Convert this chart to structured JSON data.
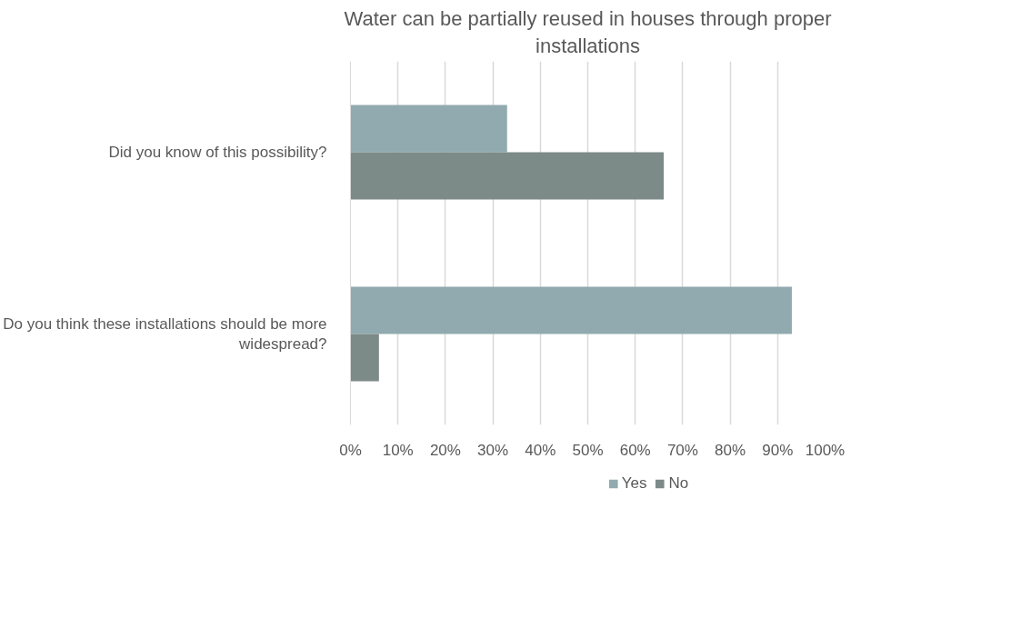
{
  "chart_data": {
    "type": "bar",
    "orientation": "horizontal",
    "title": "Water can be partially reused in houses through proper installations",
    "categories": [
      "Did you know of this possibility?",
      "Do you think these installations should be more widespread?"
    ],
    "series": [
      {
        "name": "Yes",
        "color": "#91aab0",
        "values": [
          33,
          93
        ]
      },
      {
        "name": "No",
        "color": "#7c8a88",
        "values": [
          66,
          6
        ]
      }
    ],
    "xlim": [
      0,
      100
    ],
    "xticks": [
      {
        "value": 0,
        "label": "0%"
      },
      {
        "value": 10,
        "label": "10%"
      },
      {
        "value": 20,
        "label": "20%"
      },
      {
        "value": 30,
        "label": "30%"
      },
      {
        "value": 40,
        "label": "40%"
      },
      {
        "value": 50,
        "label": "50%"
      },
      {
        "value": 60,
        "label": "60%"
      },
      {
        "value": 70,
        "label": "70%"
      },
      {
        "value": 80,
        "label": "80%"
      },
      {
        "value": 90,
        "label": "90%"
      },
      {
        "value": 100,
        "label": "100%"
      }
    ],
    "grid": "x",
    "legend": "bottom"
  }
}
